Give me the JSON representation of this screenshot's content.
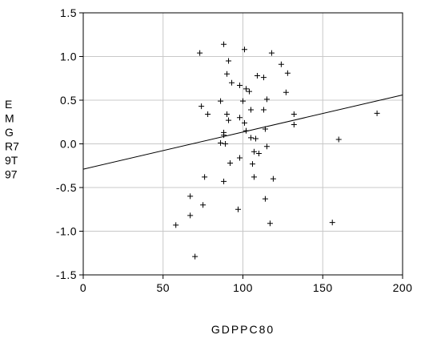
{
  "chart_data": {
    "type": "scatter",
    "xlabel": "GDPPC80",
    "ylabel_lines": [
      "E",
      "M",
      "G",
      "R7",
      "9T",
      "97"
    ],
    "xlim": [
      0,
      200
    ],
    "ylim": [
      -1.5,
      1.5
    ],
    "x_ticks": [
      0,
      50,
      100,
      150,
      200
    ],
    "x_tick_labels": [
      "0",
      "50",
      "100",
      "150",
      "200"
    ],
    "y_ticks": [
      -1.5,
      -1.0,
      -0.5,
      0.0,
      0.5,
      1.0,
      1.5
    ],
    "y_tick_labels": [
      "-1.5",
      "-1.0",
      "-0.5",
      "0.0",
      "0.5",
      "1.0",
      "1.5"
    ],
    "grid": true,
    "marker": "+",
    "fit_line": {
      "x": [
        0,
        200
      ],
      "y": [
        -0.29,
        0.56
      ]
    },
    "points": [
      {
        "x": 88,
        "y": 1.14
      },
      {
        "x": 101,
        "y": 1.08
      },
      {
        "x": 118,
        "y": 1.04
      },
      {
        "x": 73,
        "y": 1.04
      },
      {
        "x": 91,
        "y": 0.95
      },
      {
        "x": 124,
        "y": 0.91
      },
      {
        "x": 128,
        "y": 0.81
      },
      {
        "x": 90,
        "y": 0.8
      },
      {
        "x": 109,
        "y": 0.78
      },
      {
        "x": 113,
        "y": 0.76
      },
      {
        "x": 93,
        "y": 0.7
      },
      {
        "x": 98,
        "y": 0.67
      },
      {
        "x": 102,
        "y": 0.63
      },
      {
        "x": 104,
        "y": 0.6
      },
      {
        "x": 127,
        "y": 0.59
      },
      {
        "x": 86,
        "y": 0.49
      },
      {
        "x": 100,
        "y": 0.49
      },
      {
        "x": 115,
        "y": 0.51
      },
      {
        "x": 74,
        "y": 0.43
      },
      {
        "x": 113,
        "y": 0.39
      },
      {
        "x": 105,
        "y": 0.39
      },
      {
        "x": 78,
        "y": 0.34
      },
      {
        "x": 90,
        "y": 0.34
      },
      {
        "x": 132,
        "y": 0.34
      },
      {
        "x": 184,
        "y": 0.35
      },
      {
        "x": 98,
        "y": 0.3
      },
      {
        "x": 91,
        "y": 0.27
      },
      {
        "x": 101,
        "y": 0.24
      },
      {
        "x": 132,
        "y": 0.22
      },
      {
        "x": 114,
        "y": 0.17
      },
      {
        "x": 102,
        "y": 0.15
      },
      {
        "x": 88,
        "y": 0.13
      },
      {
        "x": 88,
        "y": 0.1
      },
      {
        "x": 105,
        "y": 0.07
      },
      {
        "x": 108,
        "y": 0.06
      },
      {
        "x": 160,
        "y": 0.05
      },
      {
        "x": 86,
        "y": 0.01
      },
      {
        "x": 89,
        "y": 0.0
      },
      {
        "x": 115,
        "y": -0.03
      },
      {
        "x": 107,
        "y": -0.09
      },
      {
        "x": 110,
        "y": -0.11
      },
      {
        "x": 98,
        "y": -0.16
      },
      {
        "x": 92,
        "y": -0.22
      },
      {
        "x": 106,
        "y": -0.23
      },
      {
        "x": 76,
        "y": -0.38
      },
      {
        "x": 107,
        "y": -0.38
      },
      {
        "x": 119,
        "y": -0.4
      },
      {
        "x": 88,
        "y": -0.43
      },
      {
        "x": 67,
        "y": -0.6
      },
      {
        "x": 114,
        "y": -0.63
      },
      {
        "x": 75,
        "y": -0.7
      },
      {
        "x": 97,
        "y": -0.75
      },
      {
        "x": 67,
        "y": -0.82
      },
      {
        "x": 117,
        "y": -0.91
      },
      {
        "x": 156,
        "y": -0.9
      },
      {
        "x": 58,
        "y": -0.93
      },
      {
        "x": 70,
        "y": -1.29
      }
    ]
  }
}
